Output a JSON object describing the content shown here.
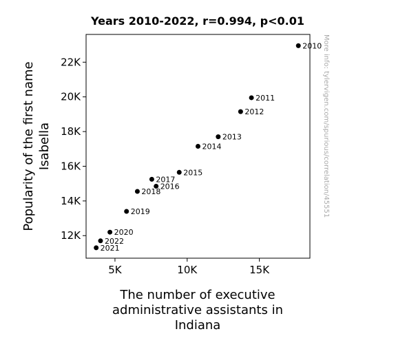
{
  "chart_data": {
    "type": "scatter",
    "title": "Years 2010-2022, r=0.994, p<0.01",
    "xlabel_lines": [
      "The number of executive",
      "administrative assistants in",
      "Indiana"
    ],
    "ylabel_lines": [
      "Popularity of the first name",
      "Isabella"
    ],
    "xlim": [
      3000,
      18500
    ],
    "ylim": [
      10700,
      23600
    ],
    "x_ticks": [
      {
        "value": 5000,
        "label": "5K"
      },
      {
        "value": 10000,
        "label": "10K"
      },
      {
        "value": 15000,
        "label": "15K"
      }
    ],
    "y_ticks": [
      {
        "value": 12000,
        "label": "12K"
      },
      {
        "value": 14000,
        "label": "14K"
      },
      {
        "value": 16000,
        "label": "16K"
      },
      {
        "value": 18000,
        "label": "18K"
      },
      {
        "value": 20000,
        "label": "20K"
      },
      {
        "value": 22000,
        "label": "22K"
      }
    ],
    "points": [
      {
        "label": "2010",
        "x": 17700,
        "y": 22950
      },
      {
        "label": "2011",
        "x": 14450,
        "y": 19950
      },
      {
        "label": "2012",
        "x": 13700,
        "y": 19150
      },
      {
        "label": "2013",
        "x": 12150,
        "y": 17700
      },
      {
        "label": "2014",
        "x": 10750,
        "y": 17150
      },
      {
        "label": "2015",
        "x": 9450,
        "y": 15650
      },
      {
        "label": "2016",
        "x": 7850,
        "y": 14850
      },
      {
        "label": "2017",
        "x": 7550,
        "y": 15250
      },
      {
        "label": "2018",
        "x": 6550,
        "y": 14550
      },
      {
        "label": "2019",
        "x": 5800,
        "y": 13400
      },
      {
        "label": "2020",
        "x": 4650,
        "y": 12200
      },
      {
        "label": "2021",
        "x": 3700,
        "y": 11300
      },
      {
        "label": "2022",
        "x": 4000,
        "y": 11700
      }
    ],
    "marker_color": "#000000",
    "grid": false,
    "watermark": "More info: tylervigen.com/spurious/correlation/45551"
  }
}
